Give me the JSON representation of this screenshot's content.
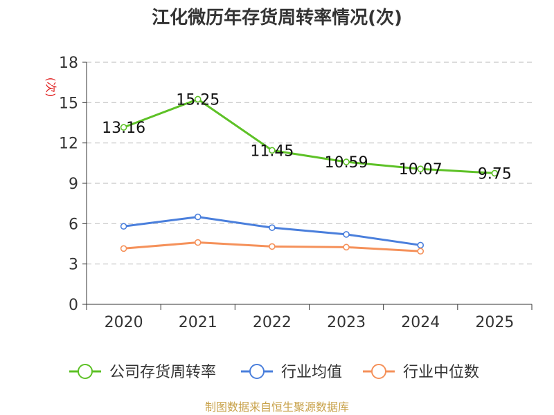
{
  "chart_data": {
    "type": "line",
    "title": "江化微历年存货周转率情况(次)",
    "ylabel_unit": "(次)",
    "categories": [
      "2020",
      "2021",
      "2022",
      "2023",
      "2024",
      "2025"
    ],
    "ylim": [
      0,
      18
    ],
    "yticks": [
      0,
      3,
      6,
      9,
      12,
      15,
      18
    ],
    "grid": "horizontal-dashed",
    "legend_position": "bottom",
    "series": [
      {
        "name": "公司存货周转率",
        "color": "#5dc126",
        "values": [
          13.16,
          15.25,
          11.45,
          10.59,
          10.07,
          9.75
        ],
        "labels": [
          "13.16",
          "15.25",
          "11.45",
          "10.59",
          "10.07",
          "9.75"
        ]
      },
      {
        "name": "行业均值",
        "color": "#4a7fdc",
        "values": [
          5.8,
          6.5,
          5.7,
          5.2,
          4.4,
          null
        ]
      },
      {
        "name": "行业中位数",
        "color": "#f5915a",
        "values": [
          4.15,
          4.6,
          4.3,
          4.25,
          3.95,
          null
        ]
      }
    ]
  },
  "source": "制图数据来自恒生聚源数据库"
}
